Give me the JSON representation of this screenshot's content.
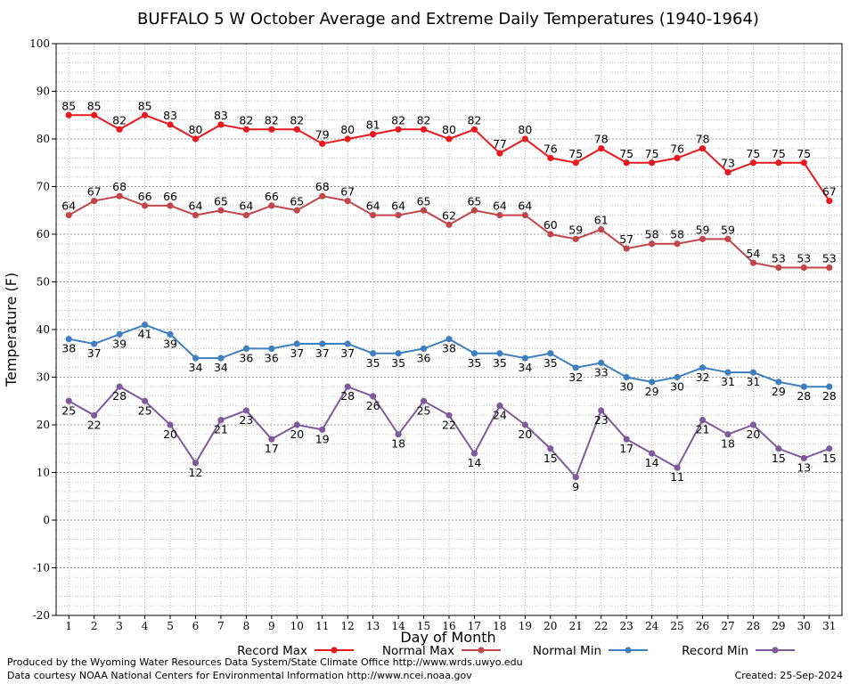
{
  "chart_data": {
    "type": "line",
    "title": "BUFFALO 5 W October Average and Extreme Daily Temperatures (1940-1964)",
    "xlabel": "Day of Month",
    "ylabel": "Temperature (F)",
    "ylim": [
      -20,
      100
    ],
    "yticks": [
      -20,
      -10,
      0,
      10,
      20,
      30,
      40,
      50,
      60,
      70,
      80,
      90,
      100
    ],
    "xlim": [
      0.5,
      31.5
    ],
    "x": [
      1,
      2,
      3,
      4,
      5,
      6,
      7,
      8,
      9,
      10,
      11,
      12,
      13,
      14,
      15,
      16,
      17,
      18,
      19,
      20,
      21,
      22,
      23,
      24,
      25,
      26,
      27,
      28,
      29,
      30,
      31
    ],
    "grid": true,
    "legend_position": "bottom",
    "series": [
      {
        "name": "Record Max",
        "color": "#e8191e",
        "label_position": "above",
        "values": [
          85,
          85,
          82,
          85,
          83,
          80,
          83,
          82,
          82,
          82,
          79,
          80,
          81,
          82,
          82,
          80,
          82,
          77,
          80,
          76,
          75,
          78,
          75,
          75,
          76,
          78,
          73,
          75,
          75,
          75,
          67
        ]
      },
      {
        "name": "Normal Max",
        "color": "#c0464a",
        "label_position": "above",
        "values": [
          64,
          67,
          68,
          66,
          66,
          64,
          65,
          64,
          66,
          65,
          68,
          67,
          64,
          64,
          65,
          62,
          65,
          64,
          64,
          60,
          59,
          61,
          57,
          58,
          58,
          59,
          59,
          54,
          53,
          53,
          53
        ]
      },
      {
        "name": "Normal Min",
        "color": "#3f7fbd",
        "label_position": "below",
        "values": [
          38,
          37,
          39,
          41,
          39,
          34,
          34,
          36,
          36,
          37,
          37,
          37,
          35,
          35,
          36,
          38,
          35,
          35,
          34,
          35,
          32,
          33,
          30,
          29,
          30,
          32,
          31,
          31,
          29,
          28,
          28
        ]
      },
      {
        "name": "Record Min",
        "color": "#7f5a9a",
        "label_position": "below",
        "values": [
          25,
          22,
          28,
          25,
          20,
          12,
          21,
          23,
          17,
          20,
          19,
          28,
          26,
          18,
          25,
          22,
          14,
          24,
          20,
          15,
          9,
          23,
          17,
          14,
          11,
          21,
          18,
          20,
          15,
          13,
          15
        ]
      }
    ]
  },
  "footer": {
    "produced_by": "Produced by the Wyoming Water Resources Data System/State Climate Office http://www.wrds.uwyo.edu",
    "courtesy": "Data courtesy NOAA National Centers for Environmental Information http://www.ncei.noaa.gov",
    "created": "Created:  25-Sep-2024"
  }
}
